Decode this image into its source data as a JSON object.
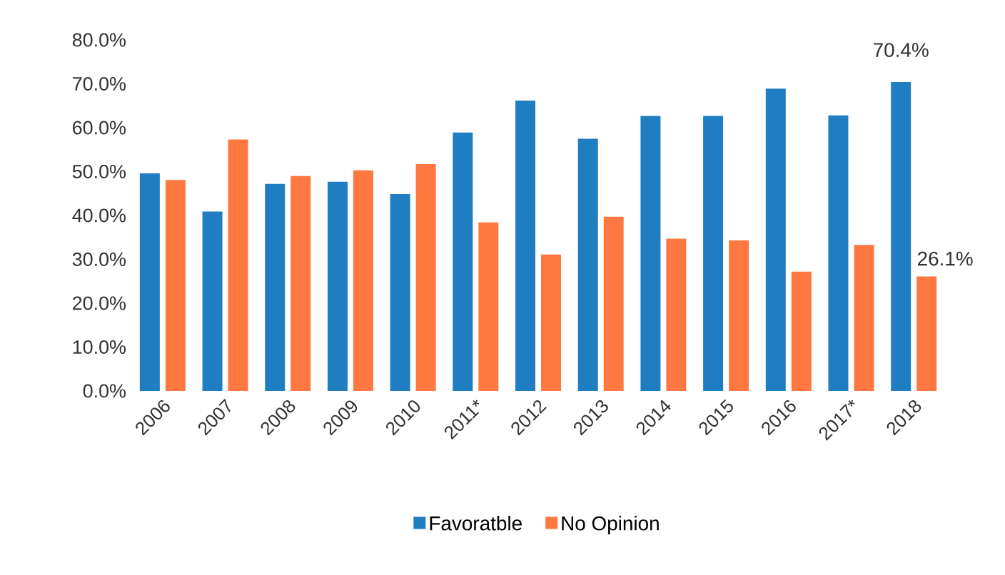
{
  "chart_data": {
    "type": "bar",
    "categories": [
      "2006",
      "2007",
      "2008",
      "2009",
      "2010",
      "2011*",
      "2012",
      "2013",
      "2014",
      "2015",
      "2016",
      "2017*",
      "2018"
    ],
    "series": [
      {
        "name": "Favoratble",
        "color": "#1f7ec2",
        "values": [
          49.6,
          40.9,
          47.2,
          47.7,
          44.9,
          58.9,
          66.2,
          57.5,
          62.7,
          62.7,
          68.9,
          62.8,
          70.4
        ],
        "value_labels": [
          null,
          null,
          null,
          null,
          null,
          null,
          null,
          null,
          null,
          null,
          null,
          null,
          "70.4%"
        ]
      },
      {
        "name": "No Opinion",
        "color": "#ff7841",
        "values": [
          48.1,
          57.3,
          49.0,
          50.3,
          51.7,
          38.4,
          31.1,
          39.7,
          34.7,
          34.3,
          27.2,
          33.3,
          26.1
        ],
        "value_labels": [
          null,
          null,
          null,
          null,
          null,
          null,
          null,
          null,
          null,
          null,
          null,
          null,
          "26.1%"
        ]
      }
    ],
    "ylim": [
      0,
      80
    ],
    "yticks": [
      {
        "value": 0,
        "label": "0.0%"
      },
      {
        "value": 10,
        "label": "10.0%"
      },
      {
        "value": 20,
        "label": "20.0%"
      },
      {
        "value": 30,
        "label": "30.0%"
      },
      {
        "value": 40,
        "label": "40.0%"
      },
      {
        "value": 50,
        "label": "50.0%"
      },
      {
        "value": 60,
        "label": "60.0%"
      },
      {
        "value": 70,
        "label": "70.0%"
      },
      {
        "value": 80,
        "label": "80.0%"
      }
    ],
    "grid": false,
    "legend": "bottom"
  }
}
